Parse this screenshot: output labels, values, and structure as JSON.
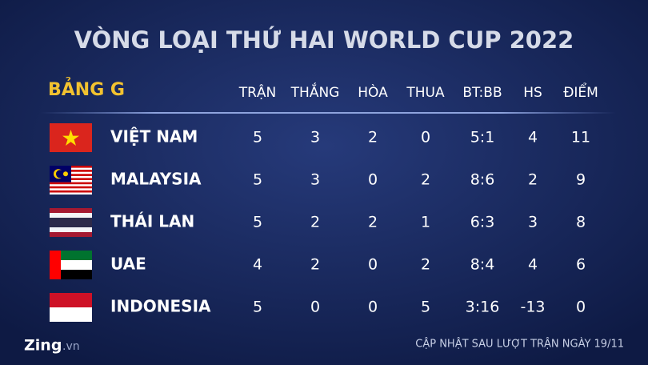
{
  "title": "VÒNG LOẠI THỨ HAI WORLD CUP 2022",
  "table": {
    "group": "BẢNG G",
    "headers": [
      "TRẬN",
      "THẮNG",
      "HÒA",
      "THUA",
      "BT:BB",
      "HS",
      "ĐIỂM"
    ],
    "rows": [
      {
        "team": "VIỆT NAM",
        "cells": [
          5,
          3,
          2,
          0,
          "5:1",
          4,
          11
        ]
      },
      {
        "team": "MALAYSIA",
        "cells": [
          5,
          3,
          0,
          2,
          "8:6",
          2,
          9
        ]
      },
      {
        "team": "THÁI LAN",
        "cells": [
          5,
          2,
          2,
          1,
          "6:3",
          3,
          8
        ]
      },
      {
        "team": "UAE",
        "cells": [
          4,
          2,
          0,
          2,
          "8:4",
          4,
          6
        ]
      },
      {
        "team": "INDONESIA",
        "cells": [
          5,
          0,
          0,
          5,
          "3:16",
          -13,
          0
        ]
      }
    ]
  },
  "footer": {
    "brand": "Zing",
    "domain": ".vn",
    "note": "CẬP NHẬT SAU LƯỢT TRẬN NGÀY 19/11"
  }
}
